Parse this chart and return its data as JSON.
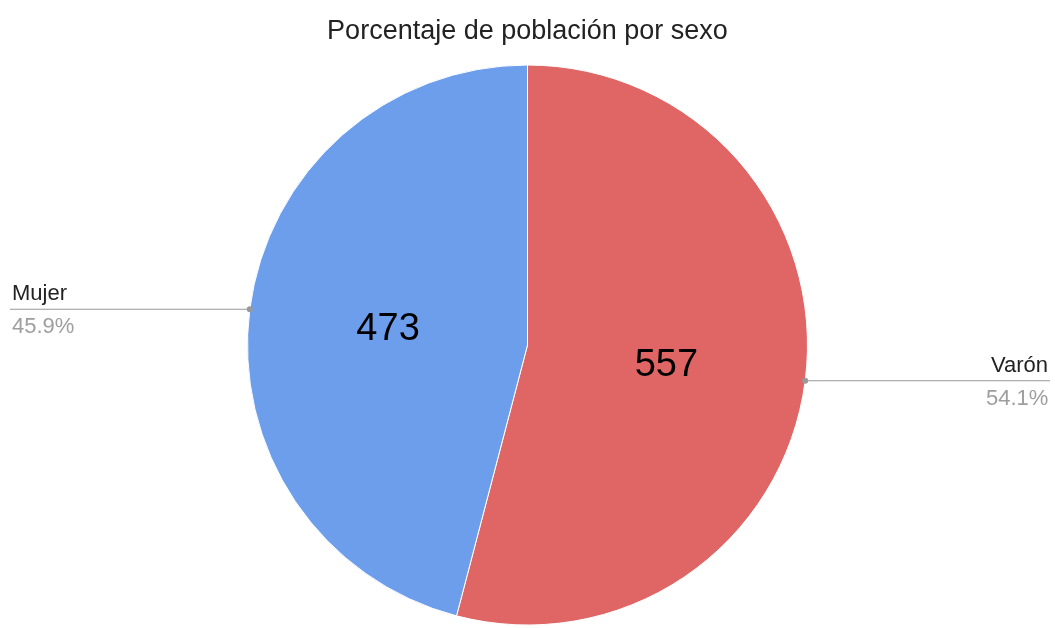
{
  "chart_data": {
    "type": "pie",
    "title": "Porcentaje de población por sexo",
    "categories": [
      "Varón",
      "Mujer"
    ],
    "values": [
      557,
      473
    ],
    "colors": [
      "#e06666",
      "#6d9eeb"
    ],
    "data_labels": true,
    "legend": false,
    "annotations": [
      "54.1%",
      "45.9%"
    ]
  }
}
